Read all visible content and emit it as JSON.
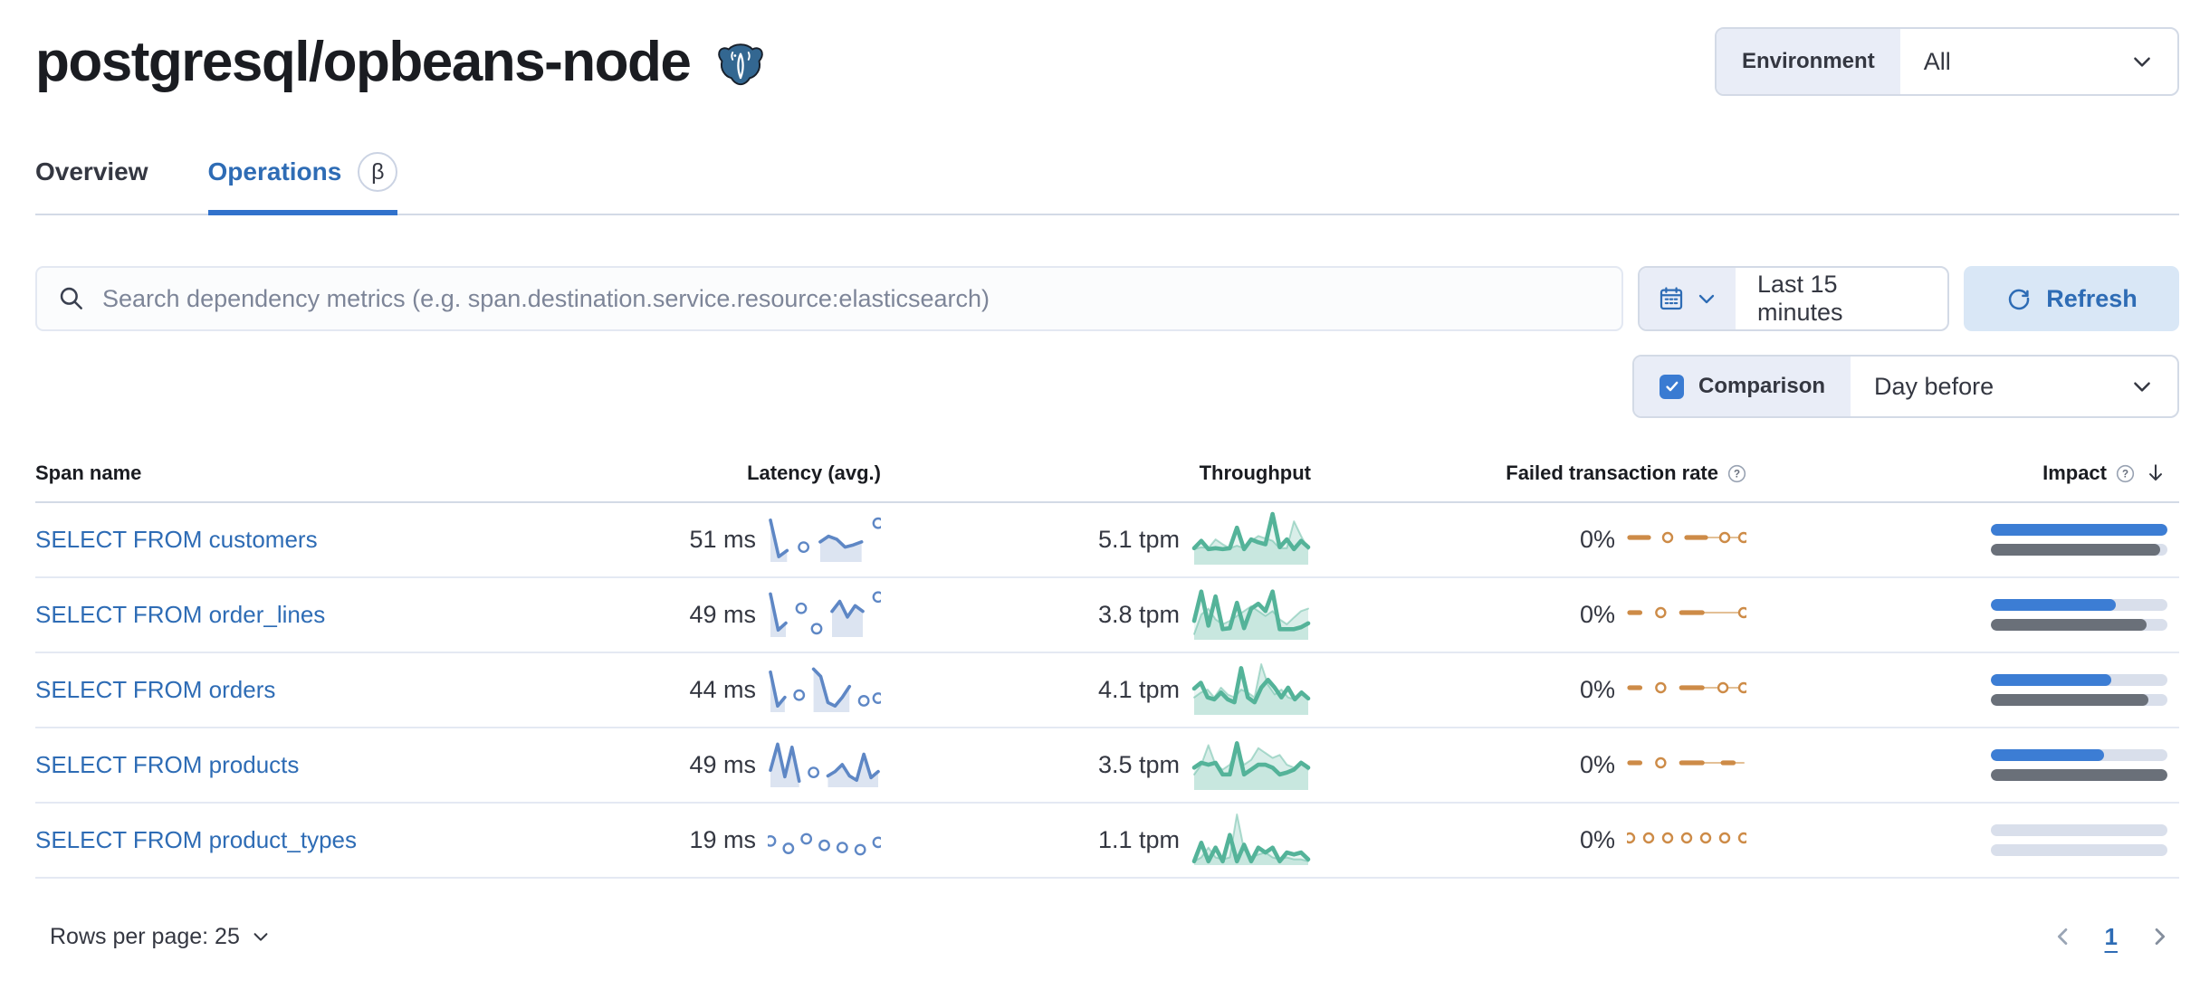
{
  "header": {
    "title": "postgresql/opbeans-node",
    "environment_label": "Environment",
    "environment_value": "All"
  },
  "tabs": {
    "overview": "Overview",
    "operations": "Operations",
    "beta": "β"
  },
  "toolbar": {
    "search_placeholder": "Search dependency metrics (e.g. span.destination.service.resource:elasticsearch)",
    "time_range": "Last 15 minutes",
    "refresh_label": "Refresh",
    "comparison_label": "Comparison",
    "comparison_checked": true,
    "comparison_value": "Day before"
  },
  "table": {
    "headers": {
      "span_name": "Span name",
      "latency": "Latency (avg.)",
      "throughput": "Throughput",
      "failed_rate": "Failed transaction rate",
      "impact": "Impact"
    },
    "rows": [
      {
        "name": "SELECT FROM customers",
        "latency": "51 ms",
        "throughput": "5.1 tpm",
        "failed_rate": "0%",
        "impact": {
          "current_pct": 100,
          "previous_pct": 96
        },
        "sparklines": {
          "latency": {
            "current": [
              0.92,
              0.08,
              0.22,
              null,
              0.3,
              null,
              0.42,
              0.55,
              0.48,
              0.3,
              0.35,
              0.42,
              null,
              0.85
            ]
          },
          "throughput": {
            "current": [
              0.3,
              0.45,
              0.28,
              0.3,
              0.28,
              0.3,
              0.72,
              0.28,
              0.48,
              0.42,
              0.38,
              1.0,
              0.32,
              0.48,
              0.28,
              0.45,
              0.32
            ],
            "previous": [
              0.28,
              0.32,
              0.3,
              0.48,
              0.38,
              0.3,
              0.35,
              0.3,
              0.45,
              0.55,
              0.5,
              0.45,
              0.3,
              0.3,
              0.85,
              0.55,
              0.28
            ]
          },
          "failed_rate": {
            "current": [
              0.5,
              0.5,
              0.5,
              null,
              0.5,
              null,
              0.5,
              0.5,
              0.5,
              null,
              0.5,
              null,
              0.5
            ],
            "previous": [
              null,
              null,
              null,
              null,
              null,
              null,
              0.5,
              0.5,
              0.5,
              0.5,
              0.5,
              0.5,
              0.5
            ]
          }
        }
      },
      {
        "name": "SELECT FROM order_lines",
        "latency": "49 ms",
        "throughput": "3.8 tpm",
        "failed_rate": "0%",
        "impact": {
          "current_pct": 71,
          "previous_pct": 88
        },
        "sparklines": {
          "latency": {
            "current": [
              0.95,
              0.12,
              0.28,
              null,
              0.62,
              null,
              0.15,
              null,
              0.55,
              0.78,
              0.42,
              0.68,
              0.55,
              null,
              0.88
            ]
          },
          "throughput": {
            "current": [
              0.35,
              0.95,
              0.25,
              0.85,
              0.18,
              0.2,
              0.72,
              0.2,
              0.6,
              0.7,
              0.55,
              0.95,
              0.18,
              0.18,
              0.18,
              0.22,
              0.3
            ],
            "previous": [
              0.08,
              0.48,
              0.6,
              0.38,
              0.28,
              0.35,
              0.45,
              0.55,
              0.65,
              0.55,
              0.45,
              0.55,
              0.38,
              0.28,
              0.42,
              0.55,
              0.6
            ]
          },
          "failed_rate": {
            "current": [
              0.5,
              0.5,
              null,
              0.5,
              null,
              0.5,
              0.5,
              0.5,
              null,
              null,
              null,
              0.5
            ],
            "previous": [
              null,
              null,
              null,
              null,
              null,
              0.5,
              0.5,
              0.5,
              0.5,
              0.5,
              0.5,
              0.5
            ]
          }
        }
      },
      {
        "name": "SELECT FROM orders",
        "latency": "44 ms",
        "throughput": "4.1 tpm",
        "failed_rate": "0%",
        "impact": {
          "current_pct": 68,
          "previous_pct": 89
        },
        "sparklines": {
          "latency": {
            "current": [
              0.88,
              0.1,
              0.3,
              null,
              0.35,
              null,
              0.95,
              0.78,
              0.18,
              0.1,
              0.3,
              0.55,
              null,
              0.22,
              null,
              0.28
            ]
          },
          "throughput": {
            "current": [
              0.5,
              0.62,
              0.32,
              0.28,
              0.42,
              0.28,
              0.22,
              0.92,
              0.32,
              0.22,
              0.52,
              0.68,
              0.52,
              0.32,
              0.52,
              0.28,
              0.42,
              0.3
            ],
            "previous": [
              0.32,
              0.42,
              0.48,
              0.32,
              0.52,
              0.38,
              0.32,
              0.48,
              0.42,
              0.32,
              1.0,
              0.58,
              0.38,
              0.48,
              0.32,
              0.28,
              0.38,
              0.28
            ]
          },
          "failed_rate": {
            "current": [
              0.5,
              0.5,
              null,
              0.5,
              null,
              0.5,
              0.5,
              0.5,
              null,
              0.5,
              null,
              0.5
            ],
            "previous": [
              null,
              null,
              null,
              null,
              null,
              0.5,
              0.5,
              0.5,
              0.5,
              0.5,
              0.5,
              0.5
            ]
          }
        }
      },
      {
        "name": "SELECT FROM products",
        "latency": "49 ms",
        "throughput": "3.5 tpm",
        "failed_rate": "0%",
        "impact": {
          "current_pct": 64,
          "previous_pct": 100
        },
        "sparklines": {
          "latency": {
            "current": [
              0.35,
              0.95,
              0.2,
              0.88,
              0.1,
              null,
              0.3,
              null,
              0.22,
              0.32,
              0.48,
              0.22,
              0.12,
              0.72,
              0.18,
              0.32
            ]
          },
          "throughput": {
            "current": [
              0.42,
              0.52,
              0.48,
              0.52,
              0.28,
              0.28,
              0.92,
              0.28,
              0.38,
              0.48,
              0.48,
              0.42,
              0.28,
              0.32,
              0.38,
              0.52,
              0.42
            ],
            "previous": [
              0.28,
              0.48,
              0.88,
              0.48,
              0.38,
              0.48,
              0.78,
              0.48,
              0.58,
              0.82,
              0.72,
              0.62,
              0.68,
              0.48,
              0.42,
              0.52,
              0.38
            ]
          },
          "failed_rate": {
            "current": [
              0.5,
              0.5,
              null,
              0.5,
              null,
              0.5,
              0.5,
              0.5,
              null,
              0.5,
              0.5,
              null
            ],
            "previous": [
              null,
              null,
              null,
              null,
              null,
              0.5,
              0.5,
              0.5,
              0.5,
              0.5,
              0.5,
              0.5
            ]
          }
        }
      },
      {
        "name": "SELECT FROM product_types",
        "latency": "19 ms",
        "throughput": "1.1 tpm",
        "failed_rate": "0%",
        "impact": {
          "current_pct": 0,
          "previous_pct": 0
        },
        "sparklines": {
          "latency": {
            "current": [
              0.45,
              null,
              0.28,
              null,
              0.5,
              null,
              0.35,
              null,
              0.3,
              null,
              0.25,
              null,
              0.42
            ]
          },
          "throughput": {
            "current": [
              0.04,
              0.42,
              0.04,
              0.32,
              0.04,
              0.58,
              0.04,
              0.38,
              0.04,
              0.32,
              0.22,
              0.32,
              0.04,
              0.22,
              0.18,
              0.22,
              0.08
            ],
            "previous": [
              0.04,
              0.12,
              0.32,
              0.12,
              0.08,
              0.12,
              1.0,
              0.28,
              0.12,
              0.18,
              0.22,
              0.12,
              0.08,
              0.12,
              0.08,
              0.08,
              0.04
            ]
          },
          "failed_rate": {
            "current": [
              0.5,
              null,
              0.5,
              null,
              0.5,
              null,
              0.5,
              null,
              0.5,
              null,
              0.5,
              null,
              0.5
            ],
            "previous": []
          }
        }
      }
    ]
  },
  "footer": {
    "rows_per_page": "Rows per page: 25",
    "page": "1"
  },
  "icons": {
    "postgresql_logo": "elephant",
    "search": "magnifier",
    "calendar": "calendar",
    "refresh": "circular-arrow",
    "question": "question-in-circle",
    "sort": "arrow-down",
    "chevron": "chevron-down",
    "checkbox_check": "check-mark"
  },
  "colors": {
    "link": "#2e6cb5",
    "tab_underline": "#3172cc",
    "latency_spark": "#5e87c5",
    "throughput_spark": "#54b399",
    "failed_rate_spark": "#cd8b47",
    "impact_current": "#3c7dd4",
    "impact_previous": "#6a7079",
    "refresh_bg": "#d9e7f6",
    "group_label_bg": "#e9edf7"
  }
}
